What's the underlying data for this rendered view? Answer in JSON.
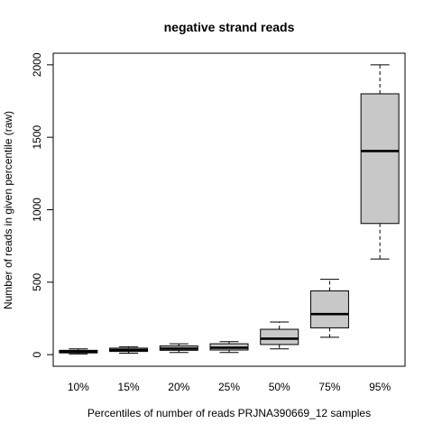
{
  "chart_data": {
    "type": "boxplot",
    "title": "negative strand reads",
    "xlabel": "Percentiles of number of reads PRJNA390669_12 samples",
    "ylabel": "Number of reads in given percentile (raw)",
    "categories": [
      "10%",
      "15%",
      "20%",
      "25%",
      "50%",
      "75%",
      "95%"
    ],
    "y_ticks": [
      0,
      500,
      1000,
      1500,
      2000
    ],
    "ylim": [
      -80,
      2080
    ],
    "grid": false,
    "legend": "none",
    "box_fill": "#c8c8c8",
    "boxes": [
      {
        "min": 5,
        "q1": 12,
        "median": 20,
        "q3": 30,
        "max": 40
      },
      {
        "min": 10,
        "q1": 22,
        "median": 32,
        "q3": 45,
        "max": 55
      },
      {
        "min": 15,
        "q1": 30,
        "median": 42,
        "q3": 60,
        "max": 75
      },
      {
        "min": 15,
        "q1": 32,
        "median": 48,
        "q3": 75,
        "max": 90
      },
      {
        "min": 40,
        "q1": 70,
        "median": 110,
        "q3": 175,
        "max": 225
      },
      {
        "min": 120,
        "q1": 185,
        "median": 280,
        "q3": 440,
        "max": 520
      },
      {
        "min": 660,
        "q1": 905,
        "median": 1405,
        "q3": 1800,
        "max": 2000
      }
    ]
  }
}
